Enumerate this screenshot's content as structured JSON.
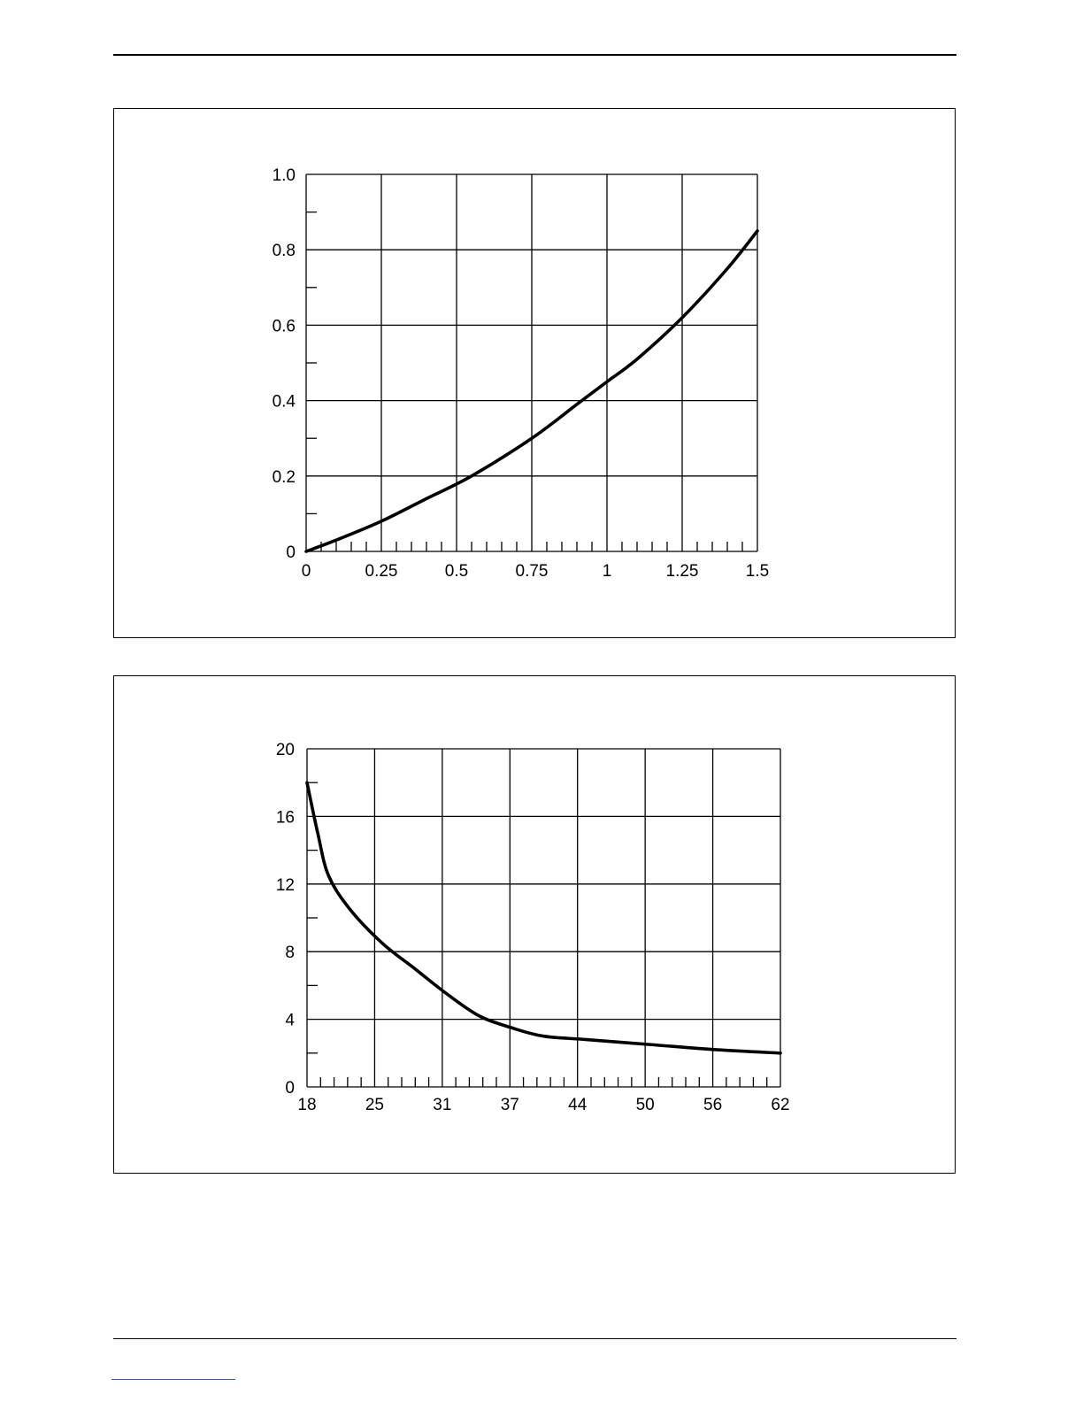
{
  "chart_data": [
    {
      "type": "line",
      "title": "",
      "xlabel": "",
      "ylabel": "",
      "xlim": [
        0,
        1.5
      ],
      "ylim": [
        0,
        1.0
      ],
      "grid": true,
      "x_tick_labels": [
        "0",
        "0.25",
        "0.5",
        "0.75",
        "1",
        "1.25",
        "1.5"
      ],
      "y_tick_labels": [
        "0",
        "0.2",
        "0.4",
        "0.6",
        "0.8",
        "1.0"
      ],
      "series": [
        {
          "x": [
            0,
            0.1,
            0.25,
            0.4,
            0.55,
            0.75,
            0.9,
            1.0,
            1.1,
            1.25,
            1.4,
            1.5
          ],
          "y": [
            0,
            0.03,
            0.08,
            0.14,
            0.2,
            0.3,
            0.39,
            0.45,
            0.51,
            0.62,
            0.75,
            0.85
          ]
        }
      ]
    },
    {
      "type": "line",
      "title": "",
      "xlabel": "",
      "ylabel": "",
      "xlim": [
        18,
        62
      ],
      "ylim": [
        0,
        20
      ],
      "grid": true,
      "x_tick_labels": [
        "18",
        "25",
        "31",
        "37",
        "44",
        "50",
        "56",
        "62"
      ],
      "y_tick_labels": [
        "0",
        "4",
        "8",
        "12",
        "16",
        "20"
      ],
      "series": [
        {
          "x": [
            18,
            19,
            20,
            22,
            25,
            28,
            31,
            34,
            37,
            40,
            44,
            50,
            56,
            62
          ],
          "y": [
            18,
            15,
            12.5,
            10.5,
            8.5,
            7,
            5.5,
            4.2,
            3.5,
            3.0,
            2.8,
            2.5,
            2.2,
            2.0
          ]
        }
      ]
    }
  ]
}
